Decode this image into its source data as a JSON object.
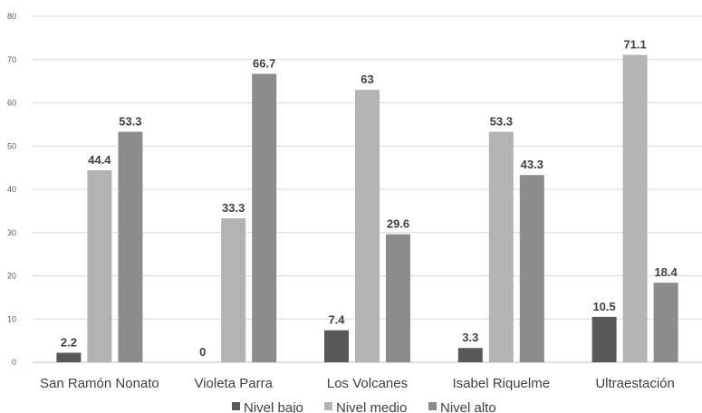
{
  "chart_data": {
    "type": "bar",
    "title": "",
    "xlabel": "",
    "ylabel": "",
    "ylim": [
      0,
      80
    ],
    "yticks": [
      0,
      10,
      20,
      30,
      40,
      50,
      60,
      70,
      80
    ],
    "grid": true,
    "legend_position": "bottom",
    "categories": [
      "San Ramón Nonato",
      "Violeta Parra",
      "Los Volcanes",
      "Isabel Riquelme",
      "Ultraestación"
    ],
    "series": [
      {
        "name": "Nivel bajo",
        "color": "#595959",
        "values": [
          2.2,
          0,
          7.4,
          3.3,
          10.5
        ]
      },
      {
        "name": "Nivel medio",
        "color": "#b3b3b3",
        "values": [
          44.4,
          33.3,
          63,
          53.3,
          71.1
        ]
      },
      {
        "name": "Nivel alto",
        "color": "#8c8c8c",
        "values": [
          53.3,
          66.7,
          29.6,
          43.3,
          18.4
        ]
      }
    ]
  }
}
